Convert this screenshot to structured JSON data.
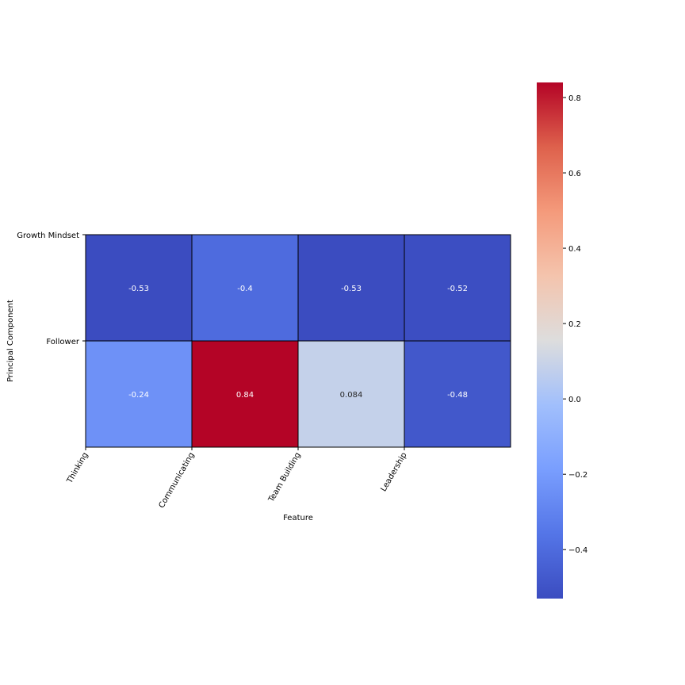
{
  "chart_data": {
    "type": "heatmap",
    "title": "",
    "xlabel": "Feature",
    "ylabel": "Principal Component",
    "x_categories": [
      "Thinking",
      "Communicating",
      "Team Building",
      "Leadership"
    ],
    "y_categories": [
      "Growth Mindset",
      "Follower"
    ],
    "values": [
      [
        -0.53,
        -0.4,
        -0.53,
        -0.52
      ],
      [
        -0.24,
        0.84,
        0.084,
        -0.48
      ]
    ],
    "value_labels": [
      [
        "-0.53",
        "-0.4",
        "-0.53",
        "-0.52"
      ],
      [
        "-0.24",
        "0.84",
        "0.084",
        "-0.48"
      ]
    ],
    "colormap": "coolwarm",
    "color_range": [
      -0.53,
      0.84
    ],
    "colorbar_ticks": [
      0.8,
      0.6,
      0.4,
      0.2,
      0.0,
      -0.2,
      -0.4
    ],
    "colorbar_tick_labels": [
      "0.8",
      "0.6",
      "0.4",
      "0.2",
      "0.0",
      "−0.2",
      "−0.4"
    ],
    "cell_border_color": "#000000",
    "grid": false
  }
}
